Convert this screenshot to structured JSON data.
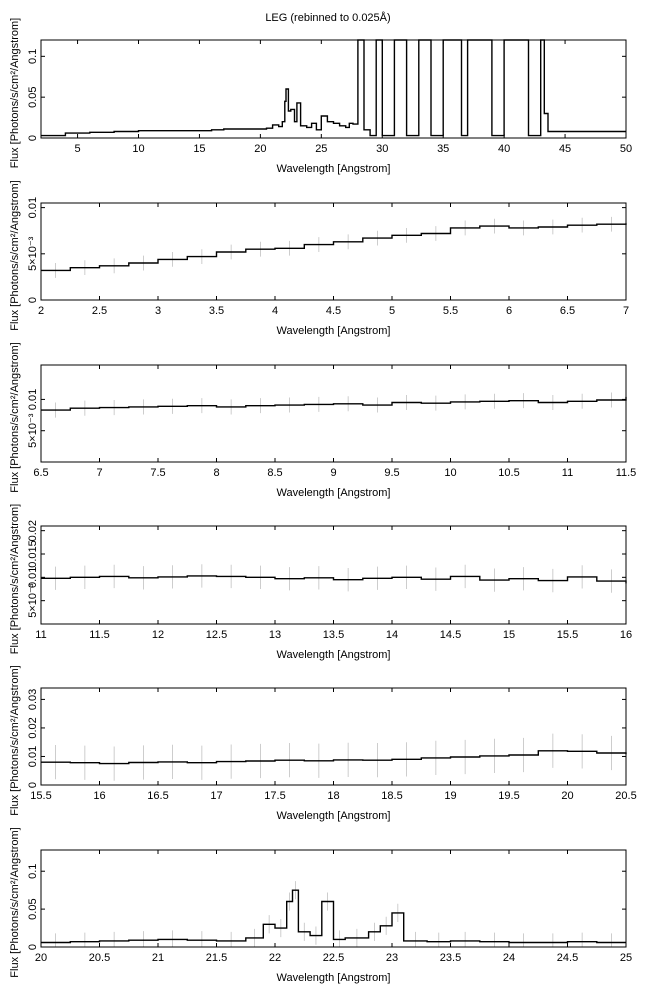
{
  "chart_data": {
    "type": "line",
    "title": "LEG (rebinned to 0.025Å)",
    "xlabel": "Wavelength [Angstrom]",
    "ylabel": "Flux [Photons/s/cm²/Angstrom]",
    "style": "histogram-steps with grey error bars",
    "panels": [
      {
        "xlim": [
          2,
          50
        ],
        "ylim": [
          0,
          0.12
        ],
        "xticks": [
          "5",
          "10",
          "15",
          "20",
          "25",
          "30",
          "35",
          "40",
          "45",
          "50"
        ],
        "yticks": [
          "0",
          "0.05",
          "0.1"
        ],
        "ytick_values": [
          0,
          0.05,
          0.1
        ],
        "x": [
          2,
          4,
          6,
          8,
          10,
          12,
          14,
          15,
          16,
          17,
          18,
          19,
          20,
          20.5,
          21,
          21.5,
          21.8,
          22.0,
          22.1,
          22.3,
          22.5,
          22.8,
          23.0,
          23.3,
          23.8,
          24.2,
          24.6,
          25.0,
          25.5,
          26.0,
          26.5,
          27.0,
          27.3,
          27.6,
          28.0,
          28.3,
          28.5,
          29.0,
          29.5,
          30.0,
          31.0,
          32.0,
          33.0,
          34.0,
          35.0,
          36.0,
          36.5,
          37.0,
          38.0,
          39.0,
          40.0,
          41.0,
          42.0,
          43.0,
          43.3,
          43.6,
          44.0,
          45,
          46,
          47,
          48,
          49,
          50
        ],
        "y": [
          0.003,
          0.006,
          0.007,
          0.008,
          0.009,
          0.009,
          0.009,
          0.009,
          0.01,
          0.011,
          0.011,
          0.011,
          0.011,
          0.012,
          0.016,
          0.014,
          0.02,
          0.045,
          0.06,
          0.033,
          0.035,
          0.02,
          0.043,
          0.015,
          0.013,
          0.018,
          0.01,
          0.027,
          0.02,
          0.018,
          0.015,
          0.013,
          0.018,
          0.017,
          0.12,
          0.12,
          0.01,
          0.003,
          0.12,
          0.003,
          0.12,
          0.003,
          0.12,
          0.003,
          0.12,
          0.12,
          0.003,
          0.12,
          0.12,
          0.003,
          0.12,
          0.12,
          0.003,
          0.12,
          0.03,
          0.008,
          0.008,
          0.008,
          0.008,
          0.008,
          0.008,
          0.008,
          0.008
        ]
      },
      {
        "xlim": [
          2,
          7
        ],
        "ylim": [
          0,
          0.0105
        ],
        "xticks": [
          "2",
          "2.5",
          "3",
          "3.5",
          "4",
          "4.5",
          "5",
          "5.5",
          "6",
          "6.5",
          "7"
        ],
        "yticks": [
          "0",
          "5×10⁻³",
          "0.01"
        ],
        "ytick_values": [
          0,
          0.005,
          0.01
        ],
        "x": [
          2.0,
          2.25,
          2.5,
          2.75,
          3.0,
          3.25,
          3.5,
          3.75,
          4.0,
          4.25,
          4.5,
          4.75,
          5.0,
          5.25,
          5.5,
          5.75,
          6.0,
          6.25,
          6.5,
          6.75,
          7.0
        ],
        "y": [
          0.0032,
          0.0035,
          0.0037,
          0.004,
          0.0044,
          0.0047,
          0.0052,
          0.0055,
          0.0056,
          0.006,
          0.0063,
          0.0067,
          0.007,
          0.0072,
          0.0078,
          0.008,
          0.0078,
          0.0079,
          0.0081,
          0.0082,
          0.0083
        ],
        "err": 0.0008
      },
      {
        "xlim": [
          6.5,
          11.5
        ],
        "ylim": [
          0,
          0.0155
        ],
        "xticks": [
          "6.5",
          "7",
          "7.5",
          "8",
          "8.5",
          "9",
          "9.5",
          "10",
          "10.5",
          "11",
          "11.5"
        ],
        "yticks": [
          "5×10⁻³",
          "0.01"
        ],
        "ytick_values": [
          0.005,
          0.01
        ],
        "x": [
          6.5,
          6.75,
          7.0,
          7.25,
          7.5,
          7.75,
          8.0,
          8.25,
          8.5,
          8.75,
          9.0,
          9.25,
          9.5,
          9.75,
          10.0,
          10.25,
          10.5,
          10.75,
          11.0,
          11.25,
          11.5
        ],
        "y": [
          0.0083,
          0.0086,
          0.0087,
          0.0088,
          0.0089,
          0.009,
          0.0088,
          0.009,
          0.0091,
          0.0092,
          0.0093,
          0.0091,
          0.0095,
          0.0094,
          0.0096,
          0.0097,
          0.0098,
          0.0095,
          0.0097,
          0.0099,
          0.0104
        ],
        "err": 0.0012
      },
      {
        "xlim": [
          11,
          16
        ],
        "ylim": [
          0,
          0.021
        ],
        "xticks": [
          "11",
          "11.5",
          "12",
          "12.5",
          "13",
          "13.5",
          "14",
          "14.5",
          "15",
          "15.5",
          "16"
        ],
        "yticks": [
          "5×10⁻³",
          "0.01",
          "0.015",
          "0.02"
        ],
        "ytick_values": [
          0.005,
          0.01,
          0.015,
          0.02
        ],
        "x": [
          11.0,
          11.25,
          11.5,
          11.75,
          12.0,
          12.25,
          12.5,
          12.75,
          13.0,
          13.25,
          13.5,
          13.75,
          14.0,
          14.25,
          14.5,
          14.75,
          15.0,
          15.25,
          15.5,
          15.75,
          16.0
        ],
        "y": [
          0.0098,
          0.01,
          0.0102,
          0.0099,
          0.0101,
          0.0103,
          0.0102,
          0.01,
          0.0097,
          0.0099,
          0.0095,
          0.0098,
          0.01,
          0.0096,
          0.0102,
          0.0094,
          0.0097,
          0.0093,
          0.0101,
          0.0092,
          0.0087
        ],
        "err": 0.0025
      },
      {
        "xlim": [
          15.5,
          20.5
        ],
        "ylim": [
          0,
          0.034
        ],
        "xticks": [
          "15.5",
          "16",
          "16.5",
          "17",
          "17.5",
          "18",
          "18.5",
          "19",
          "19.5",
          "20",
          "20.5"
        ],
        "yticks": [
          "0",
          "0.01",
          "0.02",
          "0.03"
        ],
        "ytick_values": [
          0,
          0.01,
          0.02,
          0.03
        ],
        "x": [
          15.5,
          15.75,
          16.0,
          16.25,
          16.5,
          16.75,
          17.0,
          17.25,
          17.5,
          17.75,
          18.0,
          18.25,
          18.5,
          18.75,
          19.0,
          19.25,
          19.5,
          19.75,
          20.0,
          20.25,
          20.5
        ],
        "y": [
          0.008,
          0.0078,
          0.0075,
          0.0079,
          0.0081,
          0.0078,
          0.0082,
          0.0084,
          0.0087,
          0.0085,
          0.0088,
          0.0087,
          0.009,
          0.0095,
          0.0098,
          0.0102,
          0.0105,
          0.012,
          0.0118,
          0.0112,
          0.0108
        ],
        "err": 0.006
      },
      {
        "xlim": [
          20,
          25
        ],
        "ylim": [
          0,
          0.128
        ],
        "xticks": [
          "20",
          "20.5",
          "21",
          "21.5",
          "22",
          "22.5",
          "23",
          "23.5",
          "24",
          "24.5",
          "25"
        ],
        "yticks": [
          "0",
          "0.05",
          "0.1"
        ],
        "ytick_values": [
          0,
          0.05,
          0.1
        ],
        "x": [
          20.0,
          20.25,
          20.5,
          20.75,
          21.0,
          21.25,
          21.5,
          21.75,
          21.9,
          22.0,
          22.1,
          22.15,
          22.2,
          22.3,
          22.4,
          22.5,
          22.6,
          22.8,
          22.9,
          23.0,
          23.1,
          23.3,
          23.5,
          23.75,
          24.0,
          24.25,
          24.5,
          24.75,
          25.0
        ],
        "y": [
          0.006,
          0.007,
          0.008,
          0.009,
          0.01,
          0.009,
          0.008,
          0.012,
          0.03,
          0.025,
          0.06,
          0.075,
          0.02,
          0.015,
          0.06,
          0.01,
          0.012,
          0.02,
          0.028,
          0.045,
          0.008,
          0.007,
          0.008,
          0.007,
          0.006,
          0.006,
          0.007,
          0.006,
          0.006
        ],
        "err": 0.012
      }
    ]
  }
}
